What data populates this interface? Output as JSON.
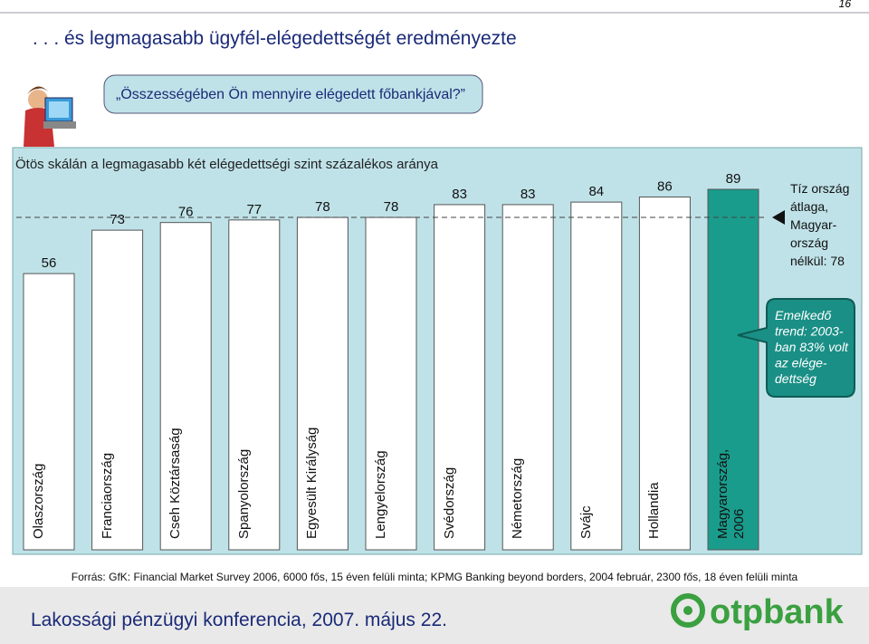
{
  "page_number": "16",
  "title": ". . . és legmagasabb ügyfél-elégedettségét eredményezte",
  "question": "„Összességében Ön mennyire elégedett főbankjával?”",
  "chart_data": {
    "type": "bar",
    "title": "Ötös skálán a legmagasabb két elégedettségi szint százalékos aránya",
    "categories": [
      "Olaszország",
      "Franciaország",
      "Cseh Köztársaság",
      "Spanyolország",
      "Egyesült Királyság",
      "Lengyelország",
      "Svédország",
      "Németország",
      "Svájc",
      "Hollandia",
      "Magyarország, 2006"
    ],
    "values": [
      56,
      73,
      76,
      77,
      78,
      78,
      83,
      83,
      84,
      86,
      89
    ],
    "colors": [
      "#ffffff",
      "#ffffff",
      "#ffffff",
      "#ffffff",
      "#ffffff",
      "#ffffff",
      "#ffffff",
      "#ffffff",
      "#ffffff",
      "#ffffff",
      "#1a9c8c"
    ],
    "ylim": [
      0,
      100
    ],
    "average": {
      "value": 78,
      "label_lines": [
        "Tíz ország",
        "átlaga,",
        "Magyar-",
        "ország",
        "nélkül: 78"
      ]
    },
    "callout_lines": [
      "Emelkedő",
      "trend: 2003-",
      "ban 83% volt",
      "az elége-",
      "dettség"
    ]
  },
  "source": "Forrás: GfK: Financial Market Survey 2006, 6000 fős, 15 éven felüli minta; KPMG  Banking beyond borders, 2004 február, 2300 fős, 18 éven felüli minta",
  "footer": "Lakossági pénzügyi konferencia, 2007. május 22.",
  "logo": "otpbank"
}
